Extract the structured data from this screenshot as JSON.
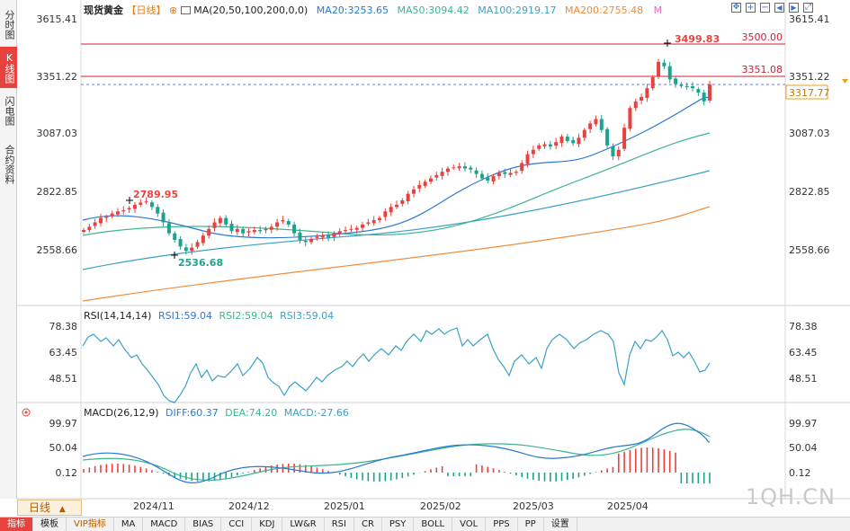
{
  "side_tabs": [
    "分时图",
    "K线图",
    "闪电图",
    "合约资料"
  ],
  "header": {
    "instrument": "现货黄金",
    "period_tag": "【日线】",
    "ma_label": "MA(20,50,100,200,0,0)",
    "ma20": "MA20:3253.65",
    "ma50": "MA50:3094.42",
    "ma100": "MA100:2919.17",
    "ma200": "MA200:2755.48",
    "m_tag": "M"
  },
  "rsi_header": {
    "label": "RSI(14,14,14)",
    "rsi1": "RSI1:59.04",
    "rsi2": "RSI2:59.04",
    "rsi3": "RSI3:59.04"
  },
  "macd_header": {
    "label": "MACD(26,12,9)",
    "diff": "DIFF:60.37",
    "dea": "DEA:74.20",
    "macd": "MACD:-27.66"
  },
  "price_axis": {
    "left_ticks": [
      "3615.41",
      "3351.22",
      "3087.03",
      "2822.85",
      "2558.66"
    ],
    "right_ticks": [
      "3615.41",
      "3351.22",
      "3087.03",
      "2822.85",
      "2558.66"
    ],
    "last_price": "3317.77"
  },
  "rsi_axis": {
    "ticks": [
      "78.38",
      "63.45",
      "48.51"
    ]
  },
  "macd_axis": {
    "ticks": [
      "99.97",
      "50.04",
      "0.12"
    ]
  },
  "date_labels": [
    "2024/11",
    "2024/12",
    "2025/01",
    "2025/02",
    "2025/03",
    "2025/04"
  ],
  "price_annotations": {
    "high": "3499.83",
    "low": "2536.68",
    "local_high": "2789.95",
    "level_3500": "3500.00",
    "level_3351": "3351.08"
  },
  "period_select": "日线",
  "watermark": "1QH.CN",
  "bottom_tabs": [
    "指标",
    "模板",
    "VIP指标",
    "MA",
    "MACD",
    "BIAS",
    "CCI",
    "KDJ",
    "LW&R",
    "RSI",
    "CR",
    "PSY",
    "BOLL",
    "VOL",
    "PPS",
    "PP",
    "设置"
  ],
  "colors": {
    "up": "#e8423f",
    "down": "#1aa38d",
    "ma20": "#2b78d4",
    "ma50": "#3cb58d",
    "ma100": "#3aa0c8",
    "ma200": "#f08c3c",
    "level_line": "#cc2233",
    "last_price": "#e6a020"
  },
  "chart_data": {
    "type": "candlestick",
    "x_labels": [
      "2024/11",
      "2024/12",
      "2025/01",
      "2025/02",
      "2025/03",
      "2025/04"
    ],
    "y_range": [
      2536.68,
      3615.41
    ],
    "price_high": 3499.83,
    "price_low": 2536.68,
    "horizontal_levels": [
      3500.0,
      3351.08
    ],
    "last_close": 3317.77,
    "close_series_approx": [
      2655,
      2670,
      2690,
      2710,
      2715,
      2730,
      2740,
      2745,
      2755,
      2770,
      2780,
      2785,
      2760,
      2730,
      2690,
      2640,
      2610,
      2580,
      2560,
      2575,
      2600,
      2630,
      2660,
      2690,
      2710,
      2680,
      2650,
      2660,
      2640,
      2650,
      2655,
      2650,
      2660,
      2670,
      2690,
      2700,
      2680,
      2640,
      2610,
      2600,
      2615,
      2625,
      2630,
      2620,
      2640,
      2650,
      2655,
      2660,
      2665,
      2680,
      2690,
      2700,
      2710,
      2740,
      2760,
      2770,
      2790,
      2820,
      2840,
      2860,
      2875,
      2890,
      2905,
      2920,
      2935,
      2940,
      2945,
      2935,
      2930,
      2910,
      2890,
      2880,
      2900,
      2915,
      2910,
      2915,
      2920,
      2960,
      3000,
      3020,
      3040,
      3045,
      3035,
      3055,
      3080,
      3060,
      3050,
      3075,
      3110,
      3140,
      3160,
      3110,
      3040,
      2990,
      3020,
      3120,
      3210,
      3240,
      3260,
      3300,
      3350,
      3420,
      3400,
      3340,
      3320,
      3310,
      3305,
      3300,
      3280,
      3240,
      3317.77
    ],
    "ma_series": {
      "MA20": 3253.65,
      "MA50": 3094.42,
      "MA100": 2919.17,
      "MA200": 2755.48
    },
    "rsi": {
      "RSI1": 59.04,
      "RSI2": 59.04,
      "RSI3": 59.04,
      "ticks": [
        78.38,
        63.45,
        48.51
      ]
    },
    "macd": {
      "DIFF": 60.37,
      "DEA": 74.2,
      "MACD": -27.66,
      "ticks": [
        99.97,
        50.04,
        0.12
      ]
    }
  }
}
